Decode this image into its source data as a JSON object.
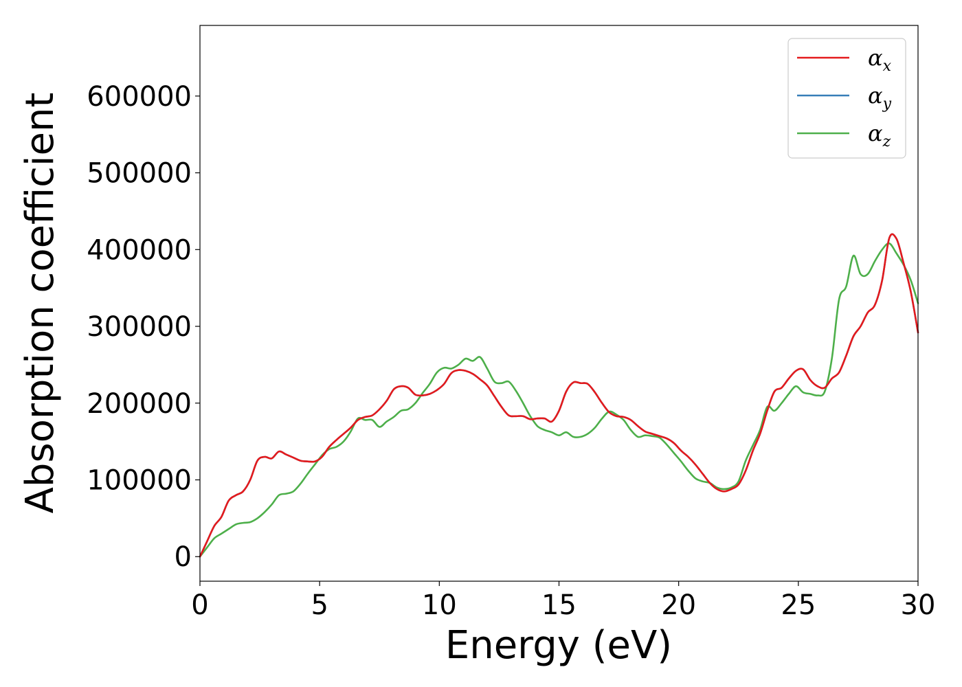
{
  "chart_data": {
    "type": "line",
    "xlabel": "Energy (eV)",
    "ylabel": "Absorption coefficient",
    "xlim": [
      0,
      30
    ],
    "ylim": [
      -32000,
      692000
    ],
    "x_ticks": [
      0,
      5,
      10,
      15,
      20,
      25,
      30
    ],
    "y_ticks": [
      0,
      100000,
      200000,
      300000,
      400000,
      500000,
      600000
    ],
    "grid": false,
    "legend_position": "top-right",
    "series": [
      {
        "name": "α_x",
        "legend_symbol": "α",
        "legend_sub": "x",
        "color": "#e41a1c",
        "x": [
          0,
          0.3,
          0.6,
          0.9,
          1.2,
          1.5,
          1.8,
          2.1,
          2.4,
          2.7,
          3.0,
          3.3,
          3.6,
          3.9,
          4.2,
          4.5,
          4.8,
          5.1,
          5.4,
          5.7,
          6.0,
          6.3,
          6.6,
          6.9,
          7.2,
          7.5,
          7.8,
          8.1,
          8.4,
          8.7,
          9.0,
          9.3,
          9.6,
          9.9,
          10.2,
          10.5,
          10.8,
          11.1,
          11.4,
          11.7,
          12.0,
          12.3,
          12.6,
          12.9,
          13.2,
          13.5,
          13.8,
          14.1,
          14.4,
          14.7,
          15.0,
          15.3,
          15.6,
          15.9,
          16.2,
          16.5,
          16.8,
          17.1,
          17.4,
          17.7,
          18.0,
          18.3,
          18.6,
          18.9,
          19.2,
          19.5,
          19.8,
          20.1,
          20.4,
          20.7,
          21.0,
          21.3,
          21.6,
          21.9,
          22.2,
          22.5,
          22.8,
          23.1,
          23.4,
          23.7,
          24.0,
          24.3,
          24.6,
          24.9,
          25.2,
          25.5,
          25.8,
          26.1,
          26.4,
          26.7,
          27.0,
          27.3,
          27.6,
          27.9,
          28.2,
          28.5,
          28.8,
          29.1,
          29.4,
          29.7,
          30.0
        ],
        "values": [
          0,
          20000,
          40000,
          52000,
          73000,
          80000,
          85000,
          100000,
          125000,
          130000,
          128000,
          137000,
          133000,
          129000,
          125000,
          124000,
          124000,
          130000,
          143000,
          152000,
          160000,
          168000,
          178000,
          182000,
          184000,
          192000,
          203000,
          218000,
          222000,
          220000,
          211000,
          210000,
          212000,
          217000,
          225000,
          239000,
          243000,
          242000,
          238000,
          231000,
          223000,
          209000,
          195000,
          184000,
          183000,
          183000,
          179000,
          180000,
          180000,
          176000,
          190000,
          215000,
          227000,
          226000,
          225000,
          214000,
          200000,
          188000,
          183000,
          182000,
          178000,
          170000,
          163000,
          160000,
          157000,
          154000,
          148000,
          138000,
          130000,
          120000,
          108000,
          96000,
          88000,
          85000,
          88000,
          94000,
          112000,
          138000,
          160000,
          190000,
          215000,
          220000,
          232000,
          242000,
          244000,
          230000,
          222000,
          220000,
          232000,
          240000,
          262000,
          287000,
          300000,
          318000,
          328000,
          360000,
          415000,
          414000,
          382000,
          345000,
          292000
        ]
      },
      {
        "name": "α_y",
        "legend_symbol": "α",
        "legend_sub": "y",
        "color": "#377eb8",
        "x": [
          0,
          0.3,
          0.6,
          0.9,
          1.2,
          1.5,
          1.8,
          2.1,
          2.4,
          2.7,
          3.0,
          3.3,
          3.6,
          3.9,
          4.2,
          4.5,
          4.8,
          5.1,
          5.4,
          5.7,
          6.0,
          6.3,
          6.6,
          6.9,
          7.2,
          7.5,
          7.8,
          8.1,
          8.4,
          8.7,
          9.0,
          9.3,
          9.6,
          9.9,
          10.2,
          10.5,
          10.8,
          11.1,
          11.4,
          11.7,
          12.0,
          12.3,
          12.6,
          12.9,
          13.2,
          13.5,
          13.8,
          14.1,
          14.4,
          14.7,
          15.0,
          15.3,
          15.6,
          15.9,
          16.2,
          16.5,
          16.8,
          17.1,
          17.4,
          17.7,
          18.0,
          18.3,
          18.6,
          18.9,
          19.2,
          19.5,
          19.8,
          20.1,
          20.4,
          20.7,
          21.0,
          21.3,
          21.6,
          21.9,
          22.2,
          22.5,
          22.8,
          23.1,
          23.4,
          23.7,
          24.0,
          24.3,
          24.6,
          24.9,
          25.2,
          25.5,
          25.8,
          26.1,
          26.4,
          26.7,
          27.0,
          27.3,
          27.6,
          27.9,
          28.2,
          28.5,
          28.8,
          29.1,
          29.4,
          29.7,
          30.0
        ],
        "values": [
          0,
          20000,
          40000,
          52000,
          73000,
          80000,
          85000,
          100000,
          125000,
          130000,
          128000,
          137000,
          133000,
          129000,
          125000,
          124000,
          124000,
          130000,
          143000,
          152000,
          160000,
          168000,
          178000,
          182000,
          184000,
          192000,
          203000,
          218000,
          222000,
          220000,
          211000,
          210000,
          212000,
          217000,
          225000,
          239000,
          243000,
          242000,
          238000,
          231000,
          223000,
          209000,
          195000,
          184000,
          183000,
          183000,
          179000,
          180000,
          180000,
          176000,
          190000,
          215000,
          227000,
          226000,
          225000,
          214000,
          200000,
          188000,
          183000,
          182000,
          178000,
          170000,
          163000,
          160000,
          157000,
          154000,
          148000,
          138000,
          130000,
          120000,
          108000,
          96000,
          88000,
          85000,
          88000,
          94000,
          112000,
          138000,
          160000,
          190000,
          215000,
          220000,
          232000,
          242000,
          244000,
          230000,
          222000,
          220000,
          232000,
          240000,
          262000,
          287000,
          300000,
          318000,
          328000,
          360000,
          415000,
          414000,
          382000,
          345000,
          292000
        ]
      },
      {
        "name": "α_z",
        "legend_symbol": "α",
        "legend_sub": "z",
        "color": "#4daf4a",
        "x": [
          0,
          0.3,
          0.6,
          0.9,
          1.2,
          1.5,
          1.8,
          2.1,
          2.4,
          2.7,
          3.0,
          3.3,
          3.6,
          3.9,
          4.2,
          4.5,
          4.8,
          5.1,
          5.4,
          5.7,
          6.0,
          6.3,
          6.6,
          6.9,
          7.2,
          7.5,
          7.8,
          8.1,
          8.4,
          8.7,
          9.0,
          9.3,
          9.6,
          9.9,
          10.2,
          10.5,
          10.8,
          11.1,
          11.4,
          11.7,
          12.0,
          12.3,
          12.6,
          12.9,
          13.2,
          13.5,
          13.8,
          14.1,
          14.4,
          14.7,
          15.0,
          15.3,
          15.6,
          15.9,
          16.2,
          16.5,
          16.8,
          17.1,
          17.4,
          17.7,
          18.0,
          18.3,
          18.6,
          18.9,
          19.2,
          19.5,
          19.8,
          20.1,
          20.4,
          20.7,
          21.0,
          21.3,
          21.6,
          21.9,
          22.2,
          22.5,
          22.8,
          23.1,
          23.4,
          23.7,
          24.0,
          24.3,
          24.6,
          24.9,
          25.2,
          25.5,
          25.8,
          26.1,
          26.4,
          26.7,
          27.0,
          27.3,
          27.6,
          27.9,
          28.2,
          28.5,
          28.8,
          29.1,
          29.4,
          29.7,
          30.0
        ],
        "values": [
          0,
          12000,
          24000,
          30000,
          36000,
          42000,
          44000,
          45000,
          50000,
          58000,
          68000,
          80000,
          82000,
          85000,
          95000,
          108000,
          120000,
          132000,
          140000,
          143000,
          150000,
          163000,
          180000,
          178000,
          178000,
          169000,
          176000,
          182000,
          190000,
          192000,
          200000,
          213000,
          225000,
          240000,
          246000,
          245000,
          250000,
          258000,
          255000,
          260000,
          245000,
          228000,
          226000,
          228000,
          216000,
          200000,
          183000,
          170000,
          165000,
          162000,
          158000,
          162000,
          156000,
          156000,
          160000,
          168000,
          180000,
          189000,
          185000,
          178000,
          165000,
          156000,
          158000,
          157000,
          155000,
          146000,
          135000,
          124000,
          112000,
          102000,
          98000,
          96000,
          90000,
          88000,
          90000,
          98000,
          125000,
          145000,
          165000,
          195000,
          190000,
          200000,
          212000,
          222000,
          214000,
          212000,
          210000,
          215000,
          258000,
          335000,
          352000,
          392000,
          368000,
          368000,
          385000,
          400000,
          408000,
          395000,
          380000,
          360000,
          330000
        ]
      }
    ]
  }
}
